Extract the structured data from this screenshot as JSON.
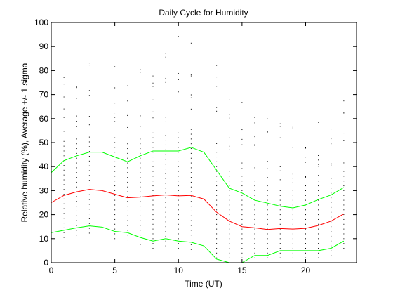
{
  "chart_data": {
    "type": "line",
    "title": "Daily Cycle for Humidity",
    "xlabel": "Time (UT)",
    "ylabel": "Relative humidity (%), Average +/- 1 sigma",
    "xlim": [
      0,
      24
    ],
    "ylim": [
      0,
      100
    ],
    "xticks": [
      0,
      5,
      10,
      15,
      20
    ],
    "yticks": [
      0,
      10,
      20,
      30,
      40,
      50,
      60,
      70,
      80,
      90,
      100
    ],
    "grid": false,
    "colors": {
      "average": "#ff0000",
      "sigma": "#00ff00",
      "points": "#000000"
    },
    "x": [
      0,
      1,
      2,
      3,
      4,
      5,
      6,
      7,
      8,
      9,
      10,
      11,
      12,
      13,
      14,
      15,
      16,
      17,
      18,
      19,
      20,
      21,
      22,
      23
    ],
    "series": [
      {
        "role": "upper",
        "values": [
          37.5,
          42.5,
          44.5,
          46,
          46,
          44,
          42,
          44.5,
          46.5,
          46.5,
          46.5,
          48,
          46,
          38.5,
          31,
          29,
          26,
          24.8,
          23.5,
          22.8,
          24,
          26.3,
          28.2,
          31.3
        ]
      },
      {
        "role": "average",
        "values": [
          25,
          28,
          29.5,
          30.5,
          30,
          28.5,
          27,
          27.3,
          27.8,
          28.2,
          27.8,
          28,
          26.5,
          21,
          17.3,
          15,
          14.5,
          13.8,
          14.2,
          14,
          14.3,
          15.5,
          17.3,
          20.3
        ]
      },
      {
        "role": "lower",
        "values": [
          12.5,
          13.5,
          14.5,
          15.3,
          14.8,
          13.0,
          12.5,
          10.5,
          9.0,
          10,
          9,
          8.5,
          7.0,
          1.5,
          0,
          0,
          3,
          3,
          5,
          5,
          5,
          5,
          6.0,
          9.0
        ]
      }
    ]
  }
}
